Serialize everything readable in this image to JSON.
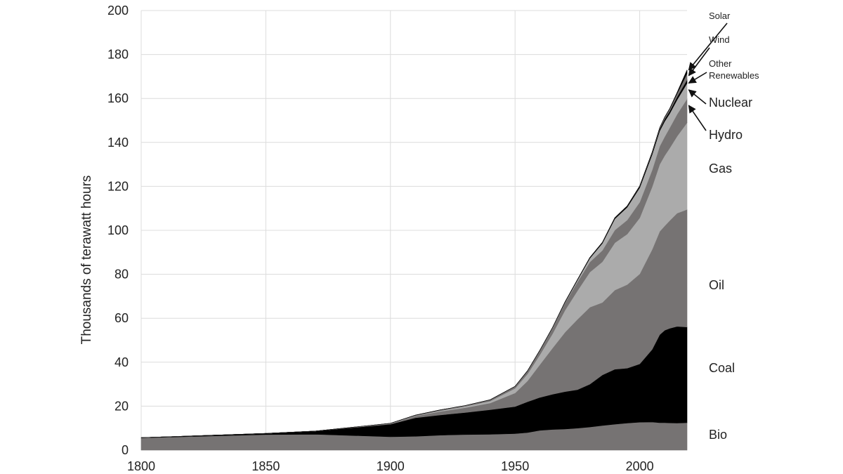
{
  "chart_data": {
    "type": "area",
    "stacked": true,
    "title": "",
    "xlabel": "",
    "ylabel": "Thousands of terawatt hours",
    "xlim": [
      1800,
      2019
    ],
    "ylim": [
      0,
      200
    ],
    "xticks": [
      1800,
      1850,
      1900,
      1950,
      2000
    ],
    "yticks": [
      0,
      20,
      40,
      60,
      80,
      100,
      120,
      140,
      160,
      180,
      200
    ],
    "grid": true,
    "legend": "direct labels at right",
    "x": [
      1800,
      1850,
      1870,
      1900,
      1910,
      1920,
      1930,
      1940,
      1950,
      1955,
      1960,
      1965,
      1970,
      1975,
      1980,
      1985,
      1990,
      1995,
      2000,
      2005,
      2008,
      2010,
      2012,
      2015,
      2019
    ],
    "series": [
      {
        "name": "Bio",
        "color": "#767373",
        "values": [
          5.6,
          7.1,
          7.2,
          6.1,
          6.3,
          6.8,
          7.1,
          7.2,
          7.5,
          8.0,
          9.0,
          9.4,
          9.6,
          10.0,
          10.5,
          11.2,
          11.8,
          12.3,
          12.7,
          12.8,
          12.5,
          12.5,
          12.4,
          12.3,
          12.5
        ]
      },
      {
        "name": "Coal",
        "color": "#000000",
        "values": [
          0.1,
          0.5,
          1.5,
          5.7,
          8.4,
          9.2,
          10.0,
          11.2,
          12.3,
          14.0,
          15.0,
          16.0,
          17.0,
          17.5,
          19.5,
          23.0,
          25.0,
          25.0,
          26.5,
          33.0,
          40.0,
          42.0,
          43.0,
          44.0,
          43.5
        ]
      },
      {
        "name": "Oil",
        "color": "#767373",
        "values": [
          0,
          0,
          0,
          0.2,
          0.8,
          1.6,
          2.2,
          3.0,
          6.2,
          9.5,
          15.0,
          21.0,
          27.0,
          32.0,
          35.0,
          33.0,
          36.0,
          38.0,
          41.0,
          45.5,
          47.0,
          47.5,
          49.0,
          51.5,
          53.5
        ]
      },
      {
        "name": "Gas",
        "color": "#ababab",
        "values": [
          0,
          0,
          0,
          0.1,
          0.2,
          0.4,
          0.6,
          0.9,
          2.1,
          3.2,
          4.5,
          6.5,
          10.0,
          13.0,
          16.0,
          18.5,
          21.5,
          23.0,
          25.5,
          28.5,
          30.5,
          32.0,
          33.0,
          35.0,
          39.5
        ]
      },
      {
        "name": "Hydro",
        "color": "#767373",
        "values": [
          0,
          0,
          0,
          0.1,
          0.2,
          0.3,
          0.4,
          0.6,
          0.9,
          1.3,
          1.9,
          2.5,
          3.3,
          4.0,
          4.6,
          5.2,
          5.8,
          6.4,
          7.1,
          7.6,
          8.2,
          8.6,
          9.2,
          10.0,
          10.8
        ]
      },
      {
        "name": "Nuclear",
        "color": "#ababab",
        "values": [
          0,
          0,
          0,
          0,
          0,
          0,
          0,
          0,
          0,
          0,
          0.1,
          0.2,
          0.3,
          0.8,
          1.7,
          3.2,
          5.1,
          5.8,
          6.6,
          7.1,
          7.0,
          7.0,
          6.5,
          6.6,
          7.1
        ]
      },
      {
        "name": "Other Renewables",
        "color": "#000000",
        "values": [
          0,
          0,
          0,
          0,
          0,
          0,
          0,
          0,
          0.05,
          0.1,
          0.1,
          0.15,
          0.2,
          0.25,
          0.3,
          0.4,
          0.5,
          0.6,
          0.7,
          0.8,
          0.9,
          1.0,
          1.1,
          1.3,
          1.6
        ]
      },
      {
        "name": "Wind",
        "color": "#767373",
        "values": [
          0,
          0,
          0,
          0,
          0,
          0,
          0,
          0,
          0,
          0,
          0,
          0,
          0,
          0,
          0,
          0,
          0,
          0,
          0.1,
          0.3,
          0.5,
          0.8,
          1.0,
          1.5,
          2.9
        ]
      },
      {
        "name": "Solar",
        "color": "#000000",
        "values": [
          0,
          0,
          0,
          0,
          0,
          0,
          0,
          0,
          0,
          0,
          0,
          0,
          0,
          0,
          0,
          0,
          0,
          0,
          0,
          0,
          0.05,
          0.1,
          0.2,
          0.5,
          1.6
        ]
      }
    ],
    "labels": [
      {
        "text": "Solar",
        "arrow": true
      },
      {
        "text": "Wind",
        "arrow": true
      },
      {
        "text": "Other",
        "arrow": true
      },
      {
        "text": "Renewables",
        "arrow": false
      },
      {
        "text": "Nuclear",
        "arrow": true
      },
      {
        "text": "Hydro",
        "arrow": true
      },
      {
        "text": "Gas",
        "arrow": false
      },
      {
        "text": "Oil",
        "arrow": false
      },
      {
        "text": "Coal",
        "arrow": false
      },
      {
        "text": "Bio",
        "arrow": false
      }
    ]
  }
}
